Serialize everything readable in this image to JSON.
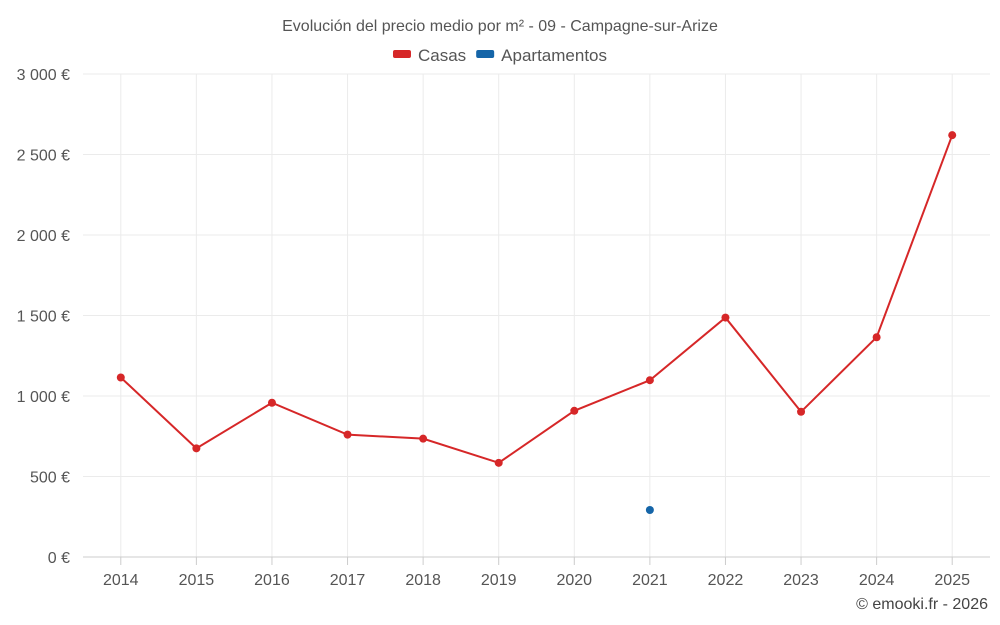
{
  "chart_data": {
    "type": "line",
    "title": "Evolución del precio medio por m² - 09 - Campagne-sur-Arize",
    "categories": [
      "2014",
      "2015",
      "2016",
      "2017",
      "2018",
      "2019",
      "2020",
      "2021",
      "2022",
      "2023",
      "2024",
      "2025"
    ],
    "series": [
      {
        "name": "Casas",
        "color": "#d62728",
        "values": [
          1115,
          675,
          958,
          760,
          735,
          585,
          908,
          1098,
          1487,
          902,
          1365,
          2620
        ]
      },
      {
        "name": "Apartamentos",
        "color": "#1565a8",
        "values": [
          null,
          null,
          null,
          null,
          null,
          null,
          null,
          292,
          null,
          null,
          null,
          null
        ]
      }
    ],
    "ylim": [
      0,
      3000
    ],
    "yticks": [
      0,
      500,
      1000,
      1500,
      2000,
      2500,
      3000
    ],
    "ytick_labels": [
      "0 €",
      "500 €",
      "1 000 €",
      "1 500 €",
      "2 000 €",
      "2 500 €",
      "3 000 €"
    ],
    "xlabel": "",
    "ylabel": "",
    "grid": true,
    "legend_position": "top-center"
  },
  "credit": "© emooki.fr - 2026"
}
